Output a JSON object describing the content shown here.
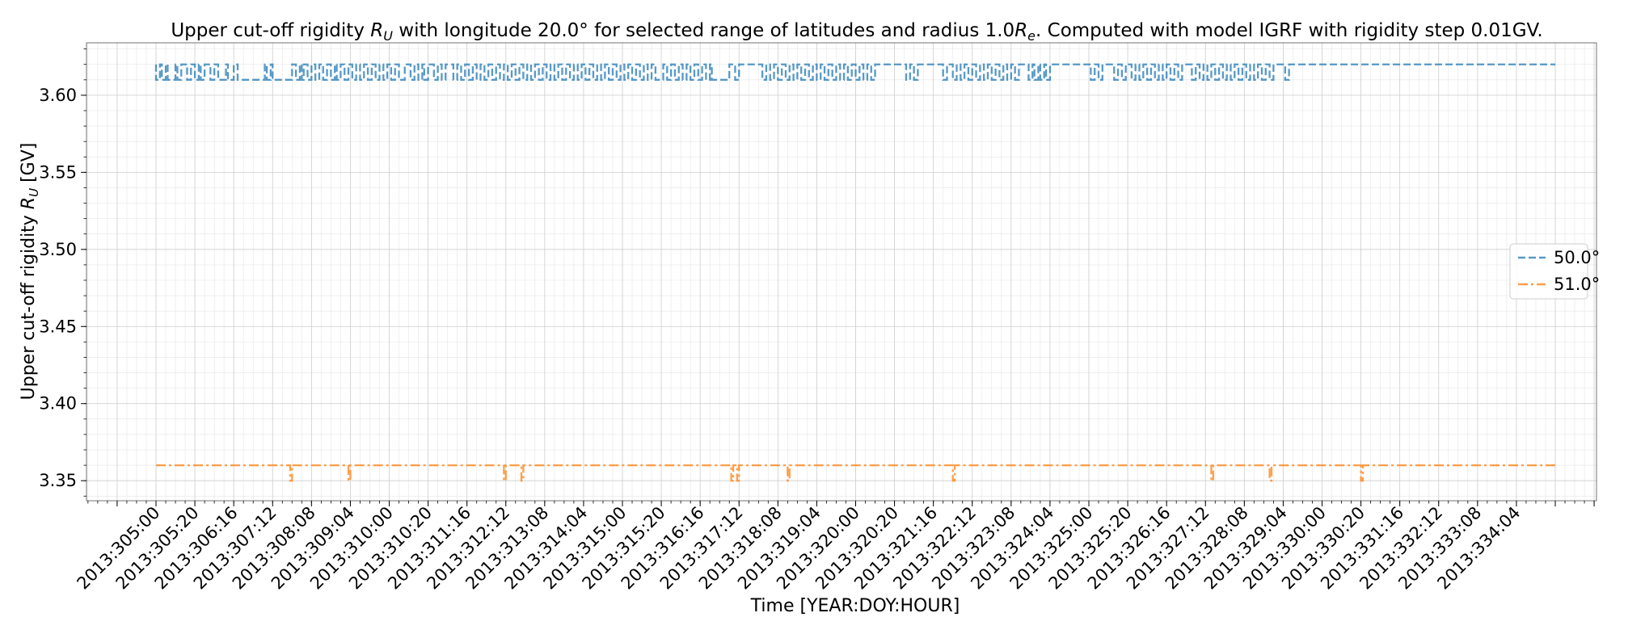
{
  "chart_data": {
    "type": "line",
    "title_parts": [
      "Upper cut-off rigidity ",
      "R",
      "U",
      " with longitude 20.0° for selected range of latitudes and radius 1.0",
      "R",
      "e",
      ". Computed with model IGRF with rigidity step 0.01GV."
    ],
    "xlabel": "Time [YEAR:DOY:HOUR]",
    "ylabel_parts": [
      "Upper cut-off rigidity ",
      "R",
      "U",
      " [GV]"
    ],
    "x_range_hours": [
      0,
      720
    ],
    "ylim": [
      3.337,
      3.634
    ],
    "yticks": [
      "3.35",
      "3.40",
      "3.45",
      "3.50",
      "3.55",
      "3.60"
    ],
    "xticks": [
      "2013:305:00",
      "2013:305:20",
      "2013:306:16",
      "2013:307:12",
      "2013:308:08",
      "2013:309:04",
      "2013:310:00",
      "2013:310:20",
      "2013:311:16",
      "2013:312:12",
      "2013:313:08",
      "2013:314:04",
      "2013:315:00",
      "2013:315:20",
      "2013:316:16",
      "2013:317:12",
      "2013:318:08",
      "2013:319:04",
      "2013:320:00",
      "2013:320:20",
      "2013:321:16",
      "2013:322:12",
      "2013:323:08",
      "2013:324:04",
      "2013:325:00",
      "2013:325:20",
      "2013:326:16",
      "2013:327:12",
      "2013:328:08",
      "2013:329:04",
      "2013:330:00",
      "2013:330:20",
      "2013:331:16",
      "2013:332:12",
      "2013:333:08",
      "2013:334:04"
    ],
    "grid": true,
    "legend_position": "right",
    "series": [
      {
        "name": "50.0°",
        "color": "#1f77b4",
        "style": "dashed",
        "baseline": 3.62,
        "dip_value": 3.61,
        "dips": [
          [
            0,
            2
          ],
          [
            3,
            5
          ],
          [
            6,
            10
          ],
          [
            11,
            13
          ],
          [
            16,
            18
          ],
          [
            20,
            22
          ],
          [
            23,
            25
          ],
          [
            28,
            30
          ],
          [
            32,
            36
          ],
          [
            37,
            40
          ],
          [
            42,
            56
          ],
          [
            57,
            59
          ],
          [
            60,
            70
          ],
          [
            72,
            74
          ],
          [
            75,
            76
          ],
          [
            78,
            80
          ],
          [
            82,
            84
          ],
          [
            86,
            88
          ],
          [
            90,
            92
          ],
          [
            93,
            95
          ],
          [
            97,
            99
          ],
          [
            101,
            103
          ],
          [
            105,
            107
          ],
          [
            109,
            111
          ],
          [
            113,
            115
          ],
          [
            117,
            119
          ],
          [
            121,
            123
          ],
          [
            125,
            128
          ],
          [
            131,
            133
          ],
          [
            135,
            137
          ],
          [
            138,
            140
          ],
          [
            143,
            145
          ],
          [
            147,
            149
          ],
          [
            153,
            155
          ],
          [
            157,
            159
          ],
          [
            161,
            163
          ],
          [
            165,
            167
          ],
          [
            169,
            171
          ],
          [
            173,
            175
          ],
          [
            177,
            179
          ],
          [
            181,
            183
          ],
          [
            185,
            187
          ],
          [
            189,
            191
          ],
          [
            193,
            195
          ],
          [
            197,
            199
          ],
          [
            201,
            203
          ],
          [
            205,
            207
          ],
          [
            209,
            211
          ],
          [
            213,
            215
          ],
          [
            217,
            219
          ],
          [
            221,
            223
          ],
          [
            225,
            227
          ],
          [
            229,
            231
          ],
          [
            233,
            235
          ],
          [
            237,
            239
          ],
          [
            241,
            243
          ],
          [
            245,
            247
          ],
          [
            249,
            251
          ],
          [
            253,
            255
          ],
          [
            257,
            261
          ],
          [
            263,
            265
          ],
          [
            267,
            269
          ],
          [
            271,
            273
          ],
          [
            275,
            277
          ],
          [
            279,
            281
          ],
          [
            283,
            285
          ],
          [
            286,
            295
          ],
          [
            298,
            300
          ],
          [
            312,
            314
          ],
          [
            316,
            318
          ],
          [
            320,
            322
          ],
          [
            324,
            326
          ],
          [
            328,
            330
          ],
          [
            332,
            334
          ],
          [
            336,
            338
          ],
          [
            340,
            342
          ],
          [
            344,
            346
          ],
          [
            348,
            350
          ],
          [
            352,
            354
          ],
          [
            356,
            358
          ],
          [
            360,
            362
          ],
          [
            364,
            366
          ],
          [
            368,
            370
          ],
          [
            386,
            388
          ],
          [
            390,
            392
          ],
          [
            405,
            407
          ],
          [
            410,
            412
          ],
          [
            414,
            416
          ],
          [
            418,
            420
          ],
          [
            422,
            424
          ],
          [
            426,
            428
          ],
          [
            430,
            432
          ],
          [
            434,
            436
          ],
          [
            438,
            440
          ],
          [
            442,
            444
          ],
          [
            449,
            451
          ],
          [
            452,
            454
          ],
          [
            455,
            457
          ],
          [
            458,
            460
          ],
          [
            481,
            483
          ],
          [
            485,
            487
          ],
          [
            493,
            495
          ],
          [
            497,
            499
          ],
          [
            502,
            504
          ],
          [
            506,
            508
          ],
          [
            510,
            512
          ],
          [
            514,
            516
          ],
          [
            518,
            520
          ],
          [
            522,
            524
          ],
          [
            526,
            528
          ],
          [
            533,
            535
          ],
          [
            537,
            539
          ],
          [
            541,
            543
          ],
          [
            545,
            547
          ],
          [
            549,
            551
          ],
          [
            553,
            555
          ],
          [
            557,
            559
          ],
          [
            561,
            563
          ],
          [
            565,
            567
          ],
          [
            569,
            571
          ],
          [
            573,
            575
          ],
          [
            581,
            583
          ]
        ]
      },
      {
        "name": "51.0°",
        "color": "#ff7f0e",
        "style": "dashdot",
        "baseline": 3.36,
        "dip_value": 3.35,
        "dips": [
          [
            69,
            70
          ],
          [
            99,
            100
          ],
          [
            179,
            180
          ],
          [
            188,
            189
          ],
          [
            296,
            297
          ],
          [
            299,
            300
          ],
          [
            325,
            326
          ],
          [
            410,
            411
          ],
          [
            543,
            544
          ],
          [
            573,
            574
          ],
          [
            620,
            621
          ]
        ]
      }
    ]
  }
}
